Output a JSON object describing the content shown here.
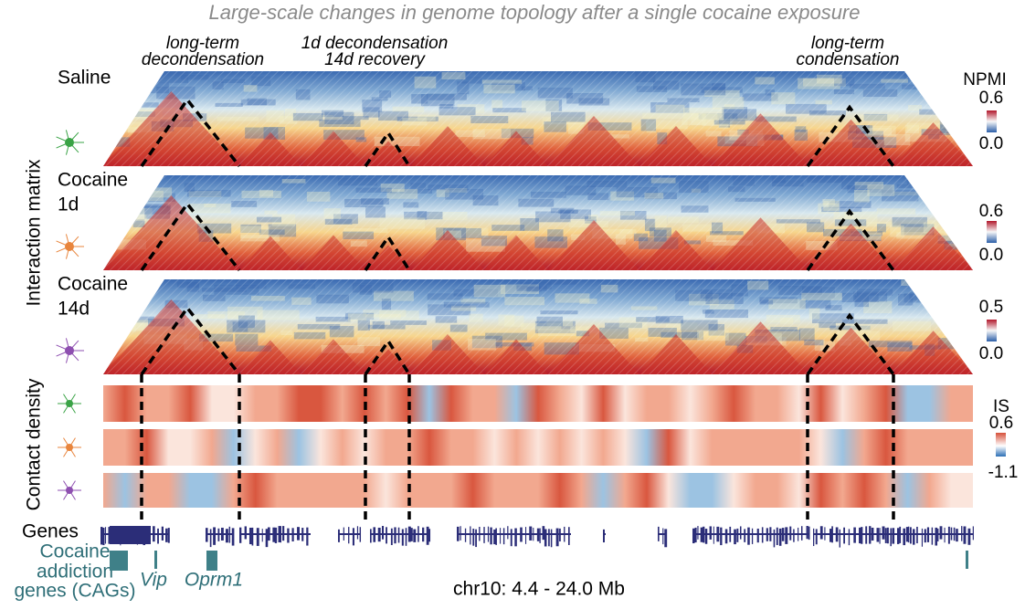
{
  "title": "Large-scale changes in genome topology after a single cocaine exposure",
  "annotations": [
    {
      "lines": [
        "long-term",
        "decondensation"
      ]
    },
    {
      "lines": [
        "1d decondensation",
        "14d recovery"
      ]
    },
    {
      "lines": [
        "long-term",
        "condensation"
      ]
    }
  ],
  "panels": [
    {
      "label_lines": [
        "Saline"
      ],
      "colorbar": {
        "title": "NPMI",
        "max": "0.6",
        "min": "0.0"
      }
    },
    {
      "label_lines": [
        "Cocaine",
        "1d"
      ],
      "colorbar": {
        "max": "0.6",
        "min": "0.0"
      }
    },
    {
      "label_lines": [
        "Cocaine",
        "14d"
      ],
      "colorbar": {
        "max": "0.5",
        "min": "0.0"
      }
    }
  ],
  "side_labels": {
    "interaction": "Interaction matrix",
    "contact": "Contact density"
  },
  "is_colorbar": {
    "title": "IS",
    "max": "0.6",
    "min": "-1.1"
  },
  "genes_label": "Genes",
  "cags": {
    "label_lines": [
      "Cocaine",
      "addiction",
      "genes (CAGs)"
    ],
    "genes": [
      "Vip",
      "Oprm1"
    ]
  },
  "region": "chr10: 4.4 - 24.0 Mb"
}
